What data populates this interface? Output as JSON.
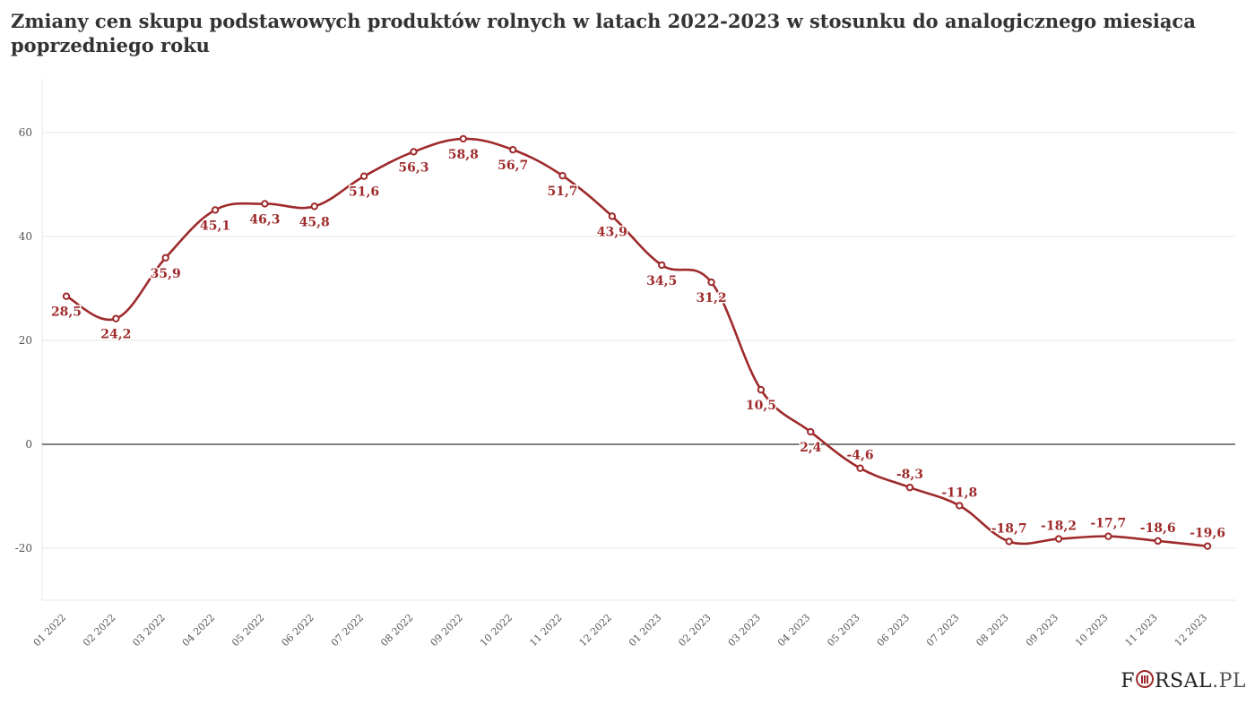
{
  "chart_data": {
    "type": "line",
    "title": "Zmiany cen skupu podstawowych produktów rolnych w latach 2022-2023 w stosunku do analogicznego miesiąca poprzedniego roku",
    "xlabel": "",
    "ylabel": "",
    "categories": [
      "01 2022",
      "02 2022",
      "03 2022",
      "04 2022",
      "05 2022",
      "06 2022",
      "07 2022",
      "08 2022",
      "09 2022",
      "10 2022",
      "11 2022",
      "12 2022",
      "01 2023",
      "02 2023",
      "03 2023",
      "04 2023",
      "05 2023",
      "06 2023",
      "07 2023",
      "08 2023",
      "09 2023",
      "10 2023",
      "11 2023",
      "12 2023"
    ],
    "series": [
      {
        "values": [
          28.5,
          24.2,
          35.9,
          45.1,
          46.3,
          45.8,
          51.6,
          56.3,
          58.8,
          56.7,
          51.7,
          43.9,
          34.5,
          31.2,
          10.5,
          2.4,
          -4.6,
          -8.3,
          -11.8,
          -18.7,
          -18.2,
          -17.7,
          -18.6,
          -19.6
        ],
        "labels": [
          "28,5",
          "24,2",
          "35,9",
          "45,1",
          "46,3",
          "45,8",
          "51,6",
          "56,3",
          "58,8",
          "56,7",
          "51,7",
          "43,9",
          "34,5",
          "31,2",
          "10,5",
          "2,4",
          "-4,6",
          "-8,3",
          "-11,8",
          "-18,7",
          "-18,2",
          "-17,7",
          "-18,6",
          "-19,6"
        ]
      }
    ],
    "yticks": [
      -20,
      0,
      20,
      40,
      60
    ],
    "ytick_labels": [
      "-20",
      "0",
      "20",
      "40",
      "60"
    ],
    "ylim": [
      -30,
      70
    ],
    "grid": true,
    "colors": {
      "line": "#9e2a2b",
      "grid": "#e6e6e6",
      "zero_line": "#333333",
      "axis_text": "#555555"
    }
  },
  "brand": {
    "logo_f": "F",
    "logo_rest": "RSAL",
    "logo_tld": ".PL"
  }
}
